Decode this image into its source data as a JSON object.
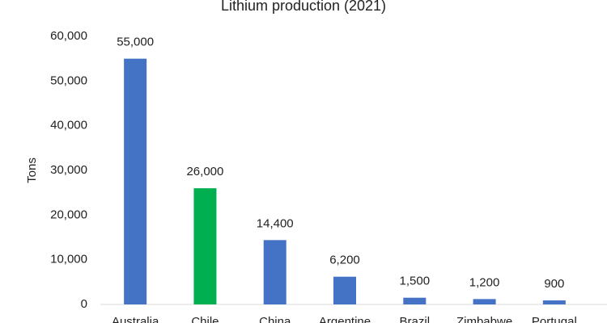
{
  "chart_data": {
    "type": "bar",
    "title": "Lithium production (2021)",
    "y_label": "Tons",
    "categories": [
      "Australia",
      "Chile",
      "China",
      "Argentine",
      "Brazil",
      "Zimbabwe",
      "Portugal"
    ],
    "values": [
      55000,
      26000,
      14400,
      6200,
      1500,
      1200,
      900
    ],
    "value_labels": [
      "55,000",
      "26,000",
      "14,400",
      "6,200",
      "1,500",
      "1,200",
      "900"
    ],
    "colors": [
      "#4472c4",
      "#00b050",
      "#4472c4",
      "#4472c4",
      "#4472c4",
      "#4472c4",
      "#4472c4"
    ],
    "ylim": [
      0,
      60000
    ],
    "yticks": [
      0,
      {
        "value": 10000,
        "label": "10,000"
      },
      {
        "value": 20000,
        "label": "20,000"
      },
      {
        "value": 30000,
        "label": "30,000"
      },
      {
        "value": 40000,
        "label": "40,000"
      },
      {
        "value": 50000,
        "label": "50,000"
      },
      {
        "value": 60000,
        "label": "60,000"
      }
    ],
    "grid": false
  }
}
